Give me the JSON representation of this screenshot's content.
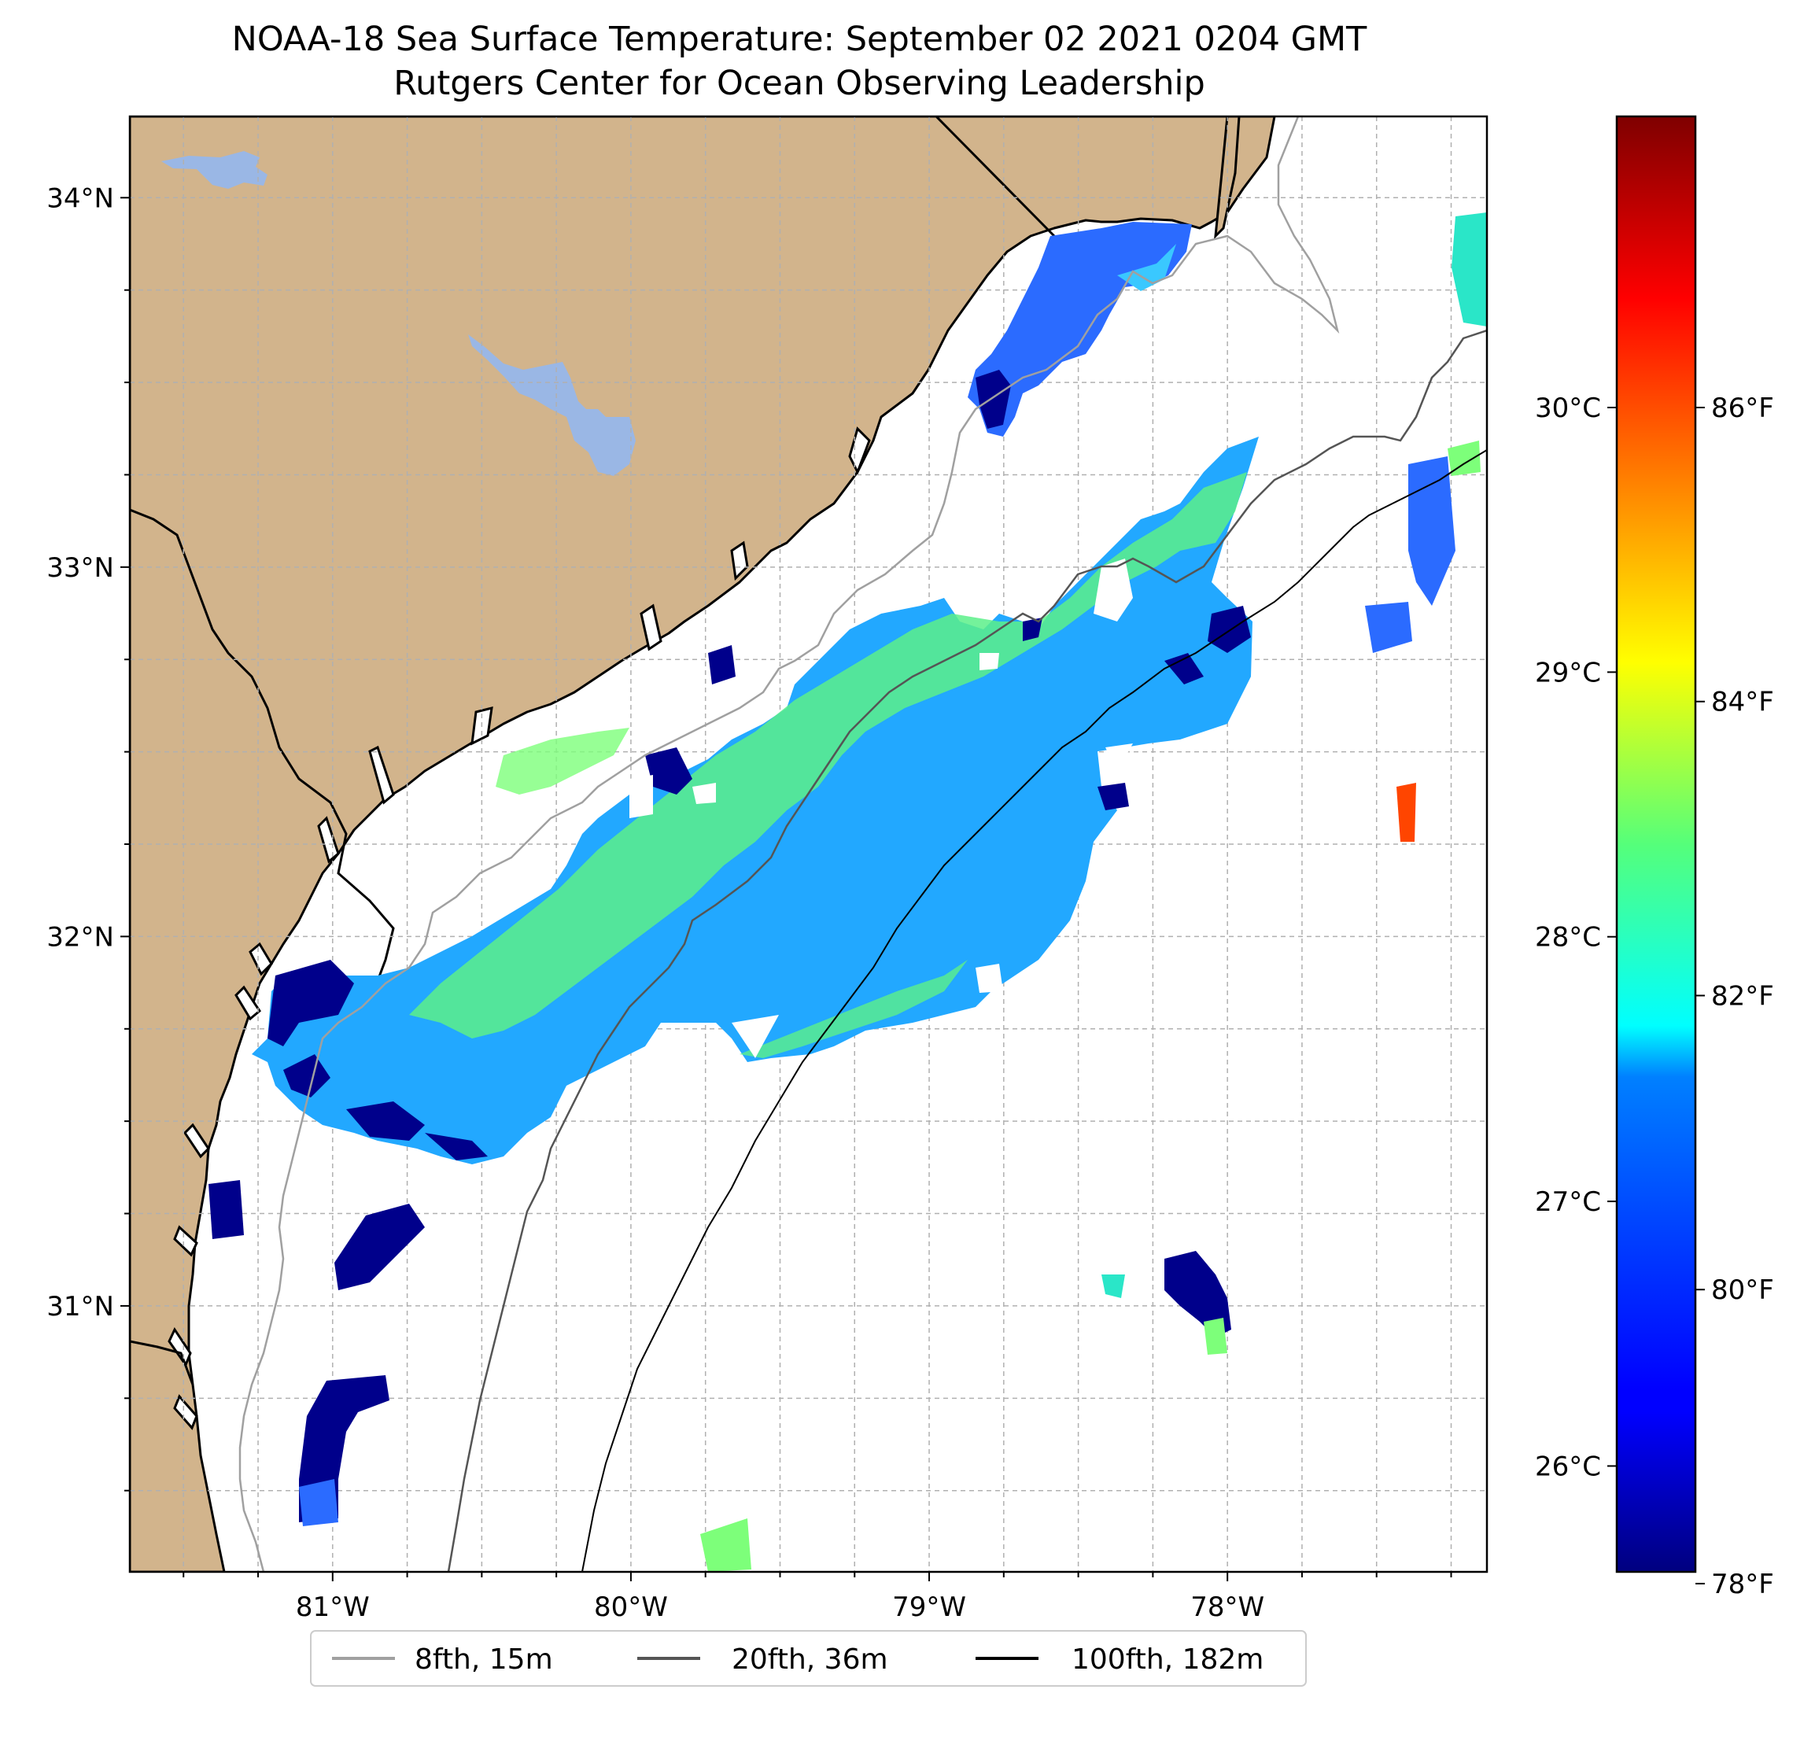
{
  "title": {
    "line1": "NOAA-18 Sea Surface Temperature: September 02 2021 0204 GMT",
    "line2": "Rutgers Center for Ocean Observing Leadership"
  },
  "map": {
    "lon_range": [
      -81.68,
      -77.13
    ],
    "lat_range": [
      30.28,
      34.22
    ],
    "land_color": "#d2b48c",
    "water_body_color": "#9ab7e5",
    "grid": true,
    "x_ticks": [
      {
        "lon": -81,
        "label": "81°W"
      },
      {
        "lon": -80,
        "label": "80°W"
      },
      {
        "lon": -79,
        "label": "79°W"
      },
      {
        "lon": -78,
        "label": "78°W"
      }
    ],
    "y_ticks": [
      {
        "lat": 34,
        "label": "34°N"
      },
      {
        "lat": 33,
        "label": "33°N"
      },
      {
        "lat": 32,
        "label": "32°N"
      },
      {
        "lat": 31,
        "label": "31°N"
      }
    ]
  },
  "colorbar": {
    "colormap": "jet",
    "range_c": [
      25.6,
      31.1
    ],
    "celsius_ticks": [
      {
        "value": 26,
        "label": "26°C"
      },
      {
        "value": 27,
        "label": "27°C"
      },
      {
        "value": 28,
        "label": "28°C"
      },
      {
        "value": 29,
        "label": "29°C"
      },
      {
        "value": 30,
        "label": "30°C"
      }
    ],
    "fahrenheit_ticks": [
      {
        "value": 78,
        "label": "78°F"
      },
      {
        "value": 80,
        "label": "80°F"
      },
      {
        "value": 82,
        "label": "82°F"
      },
      {
        "value": 84,
        "label": "84°F"
      },
      {
        "value": 86,
        "label": "86°F"
      }
    ]
  },
  "legend": {
    "items": [
      {
        "label": "8fth, 15m",
        "color": "#a0a0a0"
      },
      {
        "label": "20fth, 36m",
        "color": "#555555"
      },
      {
        "label": "100fth, 182m",
        "color": "#000000"
      }
    ]
  }
}
